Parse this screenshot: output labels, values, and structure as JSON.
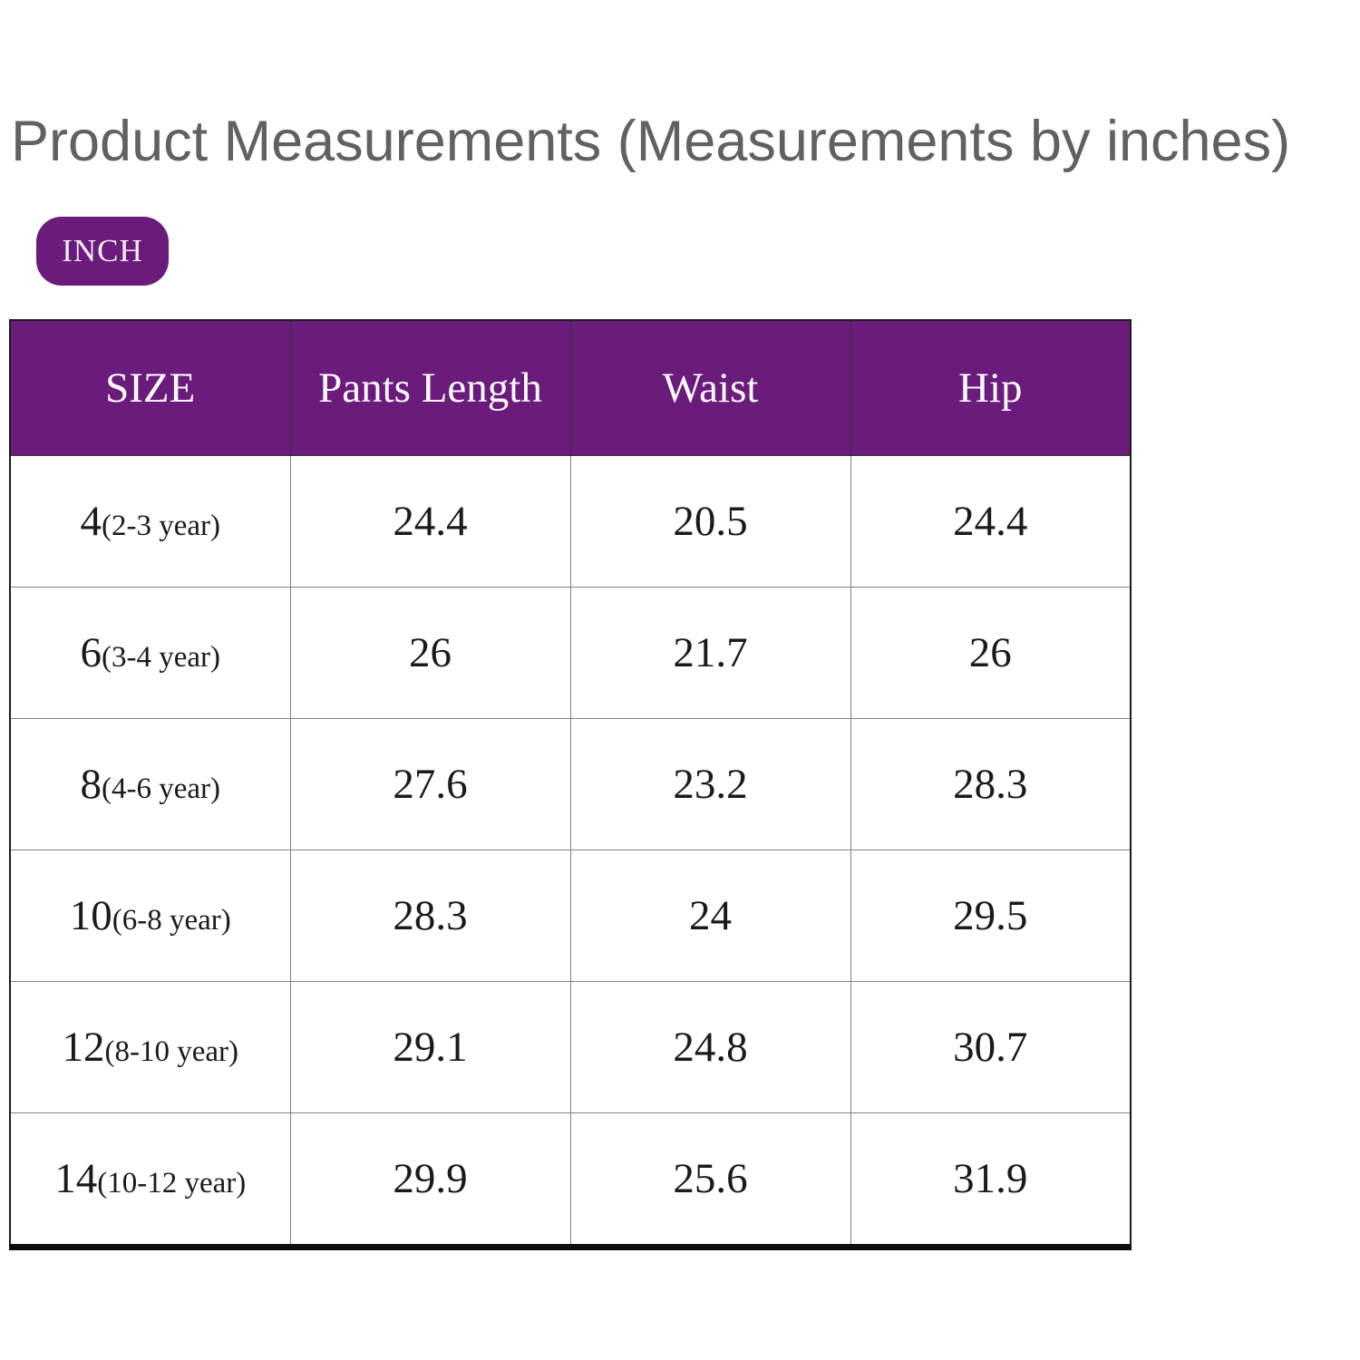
{
  "title": "Product Measurements (Measurements by inches)",
  "unit_badge": "INCH",
  "colors": {
    "accent_purple": "#6A1B7B",
    "title_gray": "#616161",
    "grid_line": "#828282",
    "outer_border": "#1C1C1C",
    "header_text": "#FFFFFF",
    "body_text": "#1A1A1A"
  },
  "table": {
    "headers": [
      "SIZE",
      "Pants Length",
      "Waist",
      "Hip"
    ],
    "rows": [
      {
        "size_number": "4",
        "size_age": "(2-3 year)",
        "pants_length": "24.4",
        "waist": "20.5",
        "hip": "24.4"
      },
      {
        "size_number": "6",
        "size_age": "(3-4 year)",
        "pants_length": "26",
        "waist": "21.7",
        "hip": "26"
      },
      {
        "size_number": "8",
        "size_age": "(4-6 year)",
        "pants_length": "27.6",
        "waist": "23.2",
        "hip": "28.3"
      },
      {
        "size_number": "10",
        "size_age": "(6-8 year)",
        "pants_length": "28.3",
        "waist": "24",
        "hip": "29.5"
      },
      {
        "size_number": "12",
        "size_age": "(8-10 year)",
        "pants_length": "29.1",
        "waist": "24.8",
        "hip": "30.7"
      },
      {
        "size_number": "14",
        "size_age": "(10-12 year)",
        "pants_length": "29.9",
        "waist": "25.6",
        "hip": "31.9"
      }
    ]
  },
  "chart_data": {
    "type": "table",
    "title": "Product Measurements (Measurements by inches)",
    "unit": "inches",
    "columns": [
      "SIZE",
      "Pants Length",
      "Waist",
      "Hip"
    ],
    "rows": [
      [
        "4(2-3 year)",
        24.4,
        20.5,
        24.4
      ],
      [
        "6(3-4 year)",
        26,
        21.7,
        26
      ],
      [
        "8(4-6 year)",
        27.6,
        23.2,
        28.3
      ],
      [
        "10(6-8 year)",
        28.3,
        24,
        29.5
      ],
      [
        "12(8-10 year)",
        29.1,
        24.8,
        30.7
      ],
      [
        "14(10-12 year)",
        29.9,
        25.6,
        31.9
      ]
    ]
  }
}
